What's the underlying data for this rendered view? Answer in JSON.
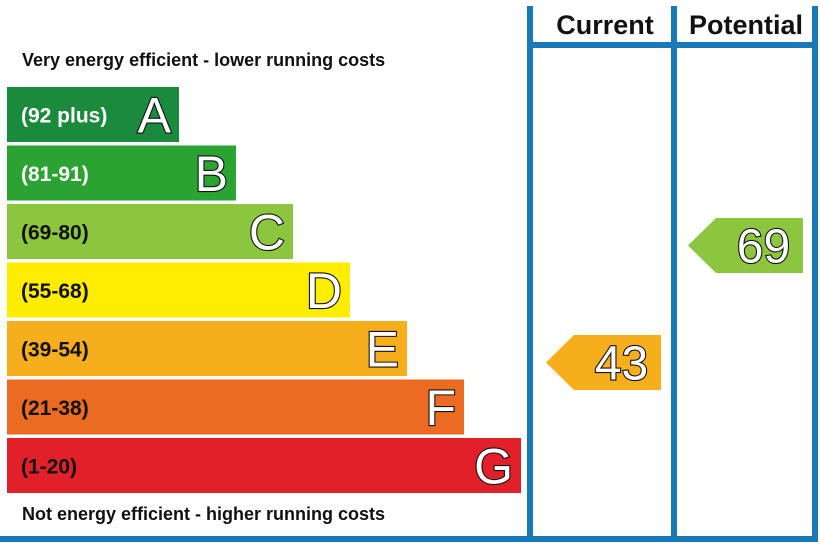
{
  "chart_data": {
    "type": "bar",
    "top_caption": "Very energy efficient - lower running costs",
    "bottom_caption": "Not energy efficient - higher running costs",
    "columns": {
      "current": "Current",
      "potential": "Potential"
    },
    "bands": [
      {
        "letter": "A",
        "range": "(92 plus)",
        "min": 92,
        "max": null,
        "color": "#1a8a3c"
      },
      {
        "letter": "B",
        "range": "(81-91)",
        "min": 81,
        "max": 91,
        "color": "#2aa332"
      },
      {
        "letter": "C",
        "range": "(69-80)",
        "min": 69,
        "max": 80,
        "color": "#8cc63f"
      },
      {
        "letter": "D",
        "range": "(55-68)",
        "min": 55,
        "max": 68,
        "color": "#ffed00"
      },
      {
        "letter": "E",
        "range": "(39-54)",
        "min": 39,
        "max": 54,
        "color": "#f7ae1d"
      },
      {
        "letter": "F",
        "range": "(21-38)",
        "min": 21,
        "max": 38,
        "color": "#ec6b23"
      },
      {
        "letter": "G",
        "range": "(1-20)",
        "min": 1,
        "max": 20,
        "color": "#e2202a"
      }
    ],
    "ratings": {
      "current": {
        "value": 43,
        "band": "E",
        "color": "#f7ae1d"
      },
      "potential": {
        "value": 69,
        "band": "C",
        "color": "#8cc63f"
      }
    },
    "frame_color": "#1779b7"
  }
}
